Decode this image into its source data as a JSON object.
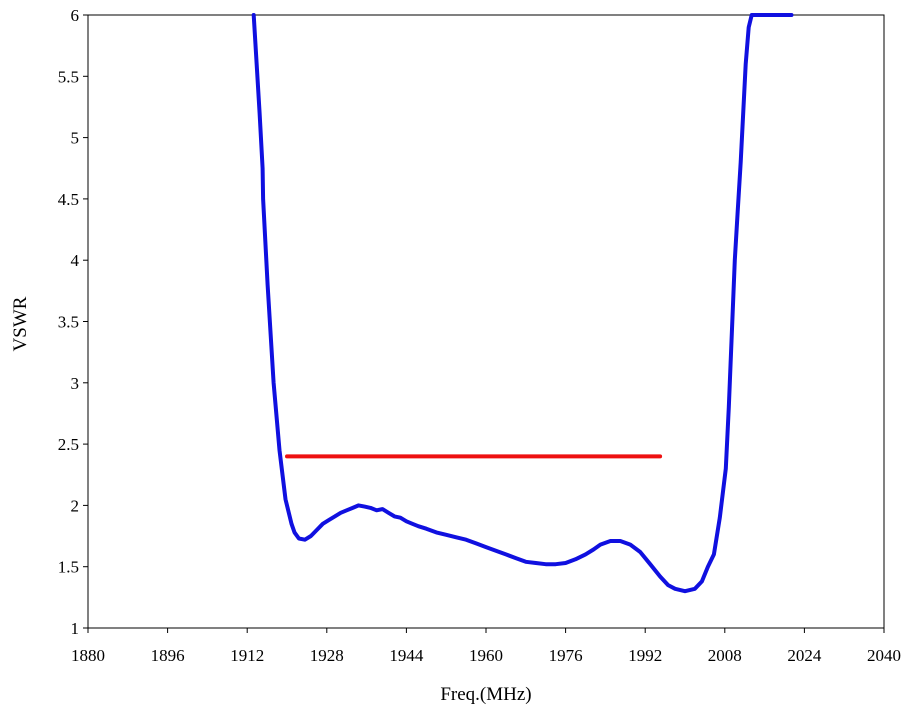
{
  "chart_data": {
    "type": "line",
    "title": "",
    "xlabel": "Freq.(MHz)",
    "ylabel": "VSWR",
    "xlim": [
      1880,
      2040
    ],
    "ylim": [
      1,
      6
    ],
    "xticks": [
      "1880",
      "1896",
      "1912",
      "1928",
      "1944",
      "1960",
      "1976",
      "1992",
      "2008",
      "2024",
      "2040"
    ],
    "yticks": [
      "1",
      "1.5",
      "2",
      "2.5",
      "3",
      "3.5",
      "4",
      "4.5",
      "5",
      "5.5",
      "6"
    ],
    "grid": false,
    "legend": "none",
    "series": [
      {
        "color": "#1010e0",
        "x": [
          1913.3,
          1914.5,
          1915.1,
          1915.2,
          1916.1,
          1917.3,
          1918.5,
          1919.7,
          1920.9,
          1921.5,
          1922.4,
          1923.6,
          1924.8,
          1926.0,
          1927.2,
          1928.4,
          1929.6,
          1930.8,
          1932.0,
          1933.2,
          1934.4,
          1935.6,
          1936.8,
          1938.0,
          1939.2,
          1940.4,
          1941.6,
          1942.8,
          1944.0,
          1945.2,
          1946.4,
          1948.0,
          1950.0,
          1952.0,
          1954.0,
          1956.0,
          1958.0,
          1960.0,
          1962.0,
          1964.0,
          1966.0,
          1968.0,
          1970.0,
          1972.0,
          1974.0,
          1976.0,
          1978.0,
          1980.0,
          1981.6,
          1983.0,
          1985.0,
          1987.0,
          1989.0,
          1991.0,
          1993.0,
          1995.0,
          1996.6,
          1998.0,
          2000.0,
          2002.0,
          2003.4,
          2004.6,
          2005.8,
          2007.0,
          2008.2,
          2008.8,
          2009.4,
          2010.0,
          2010.6,
          2011.2,
          2011.7,
          2012.2,
          2012.8,
          2013.4,
          2014.0,
          2014.6,
          2015.2,
          2015.8,
          2016.4,
          2017.0,
          2017.6,
          2018.2,
          2018.6,
          2019.0,
          2019.4,
          2019.8,
          2020.2,
          2020.6,
          2021.0,
          2021.4
        ],
        "values": [
          6.0,
          5.2,
          4.75,
          4.5,
          3.8,
          3.0,
          2.45,
          2.05,
          1.85,
          1.78,
          1.73,
          1.72,
          1.75,
          1.8,
          1.85,
          1.88,
          1.91,
          1.94,
          1.96,
          1.98,
          2.0,
          1.99,
          1.98,
          1.96,
          1.97,
          1.94,
          1.91,
          1.9,
          1.87,
          1.85,
          1.83,
          1.81,
          1.78,
          1.76,
          1.74,
          1.72,
          1.69,
          1.66,
          1.63,
          1.6,
          1.57,
          1.54,
          1.53,
          1.52,
          1.52,
          1.53,
          1.56,
          1.6,
          1.64,
          1.68,
          1.71,
          1.71,
          1.68,
          1.62,
          1.52,
          1.42,
          1.35,
          1.32,
          1.3,
          1.32,
          1.38,
          1.5,
          1.6,
          1.9,
          2.3,
          2.8,
          3.4,
          4.0,
          4.4,
          4.8,
          5.2,
          5.6,
          5.9,
          6.0,
          6.0,
          6.0,
          6.0,
          6.0,
          6.0,
          6.0,
          6.0,
          6.0,
          6.0,
          6.0,
          6.0,
          6.0,
          6.0,
          6.0,
          6.0,
          6.0
        ]
      },
      {
        "color": "#ee1111",
        "x": [
          1920,
          1995
        ],
        "values": [
          2.4,
          2.4
        ]
      }
    ]
  }
}
